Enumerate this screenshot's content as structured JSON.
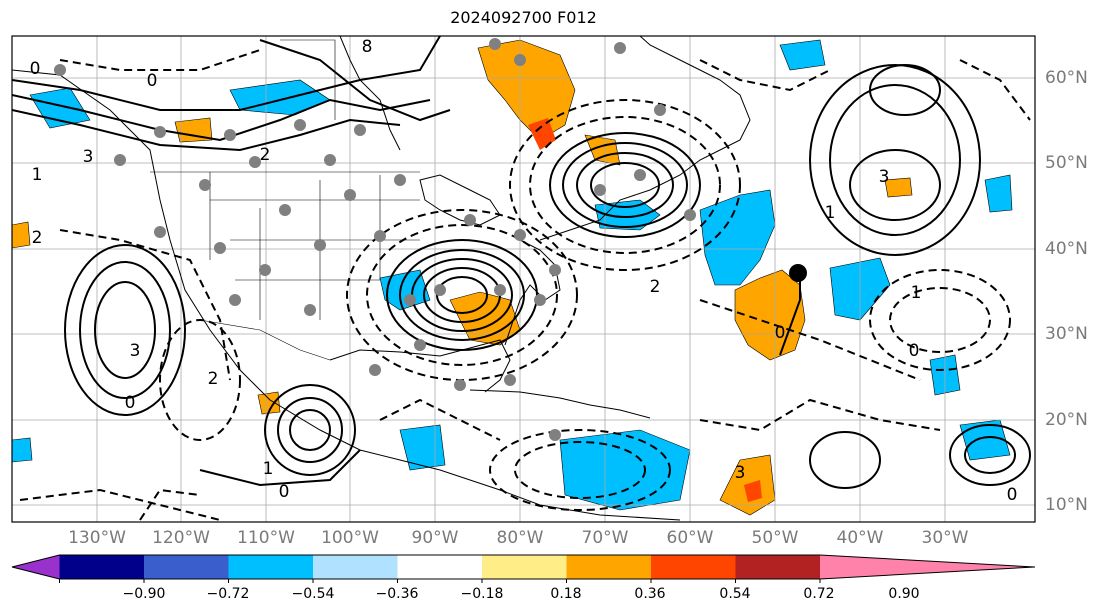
{
  "title": "2024092700 F012",
  "map": {
    "longitude_labels": [
      "130°W",
      "120°W",
      "110°W",
      "100°W",
      "90°W",
      "80°W",
      "70°W",
      "60°W",
      "50°W",
      "40°W",
      "30°W"
    ],
    "latitude_labels": [
      "60°N",
      "50°N",
      "40°N",
      "30°N",
      "20°N",
      "10°N"
    ],
    "contour_labels": [
      {
        "text": "0"
      },
      {
        "text": "0"
      },
      {
        "text": "8"
      },
      {
        "text": "2"
      },
      {
        "text": "3"
      },
      {
        "text": "1"
      },
      {
        "text": "2"
      },
      {
        "text": "3"
      },
      {
        "text": "0"
      },
      {
        "text": "2"
      },
      {
        "text": "3"
      },
      {
        "text": "1"
      },
      {
        "text": "1"
      },
      {
        "text": "0"
      },
      {
        "text": "1"
      },
      {
        "text": "2"
      },
      {
        "text": "0"
      },
      {
        "text": "0"
      },
      {
        "text": "3"
      },
      {
        "text": "0"
      }
    ]
  },
  "colorbar": {
    "colors": [
      "#9932cc",
      "#00008b",
      "#3a5fcd",
      "#00bfff",
      "#b0e2ff",
      "#ffffff",
      "#ffee88",
      "#ffa500",
      "#ff4500",
      "#b22222",
      "#ff82ab"
    ],
    "tick_labels": [
      "−0.90",
      "−0.72",
      "−0.54",
      "−0.36",
      "−0.18",
      "0.18",
      "0.36",
      "0.54",
      "0.72",
      "0.90"
    ]
  }
}
